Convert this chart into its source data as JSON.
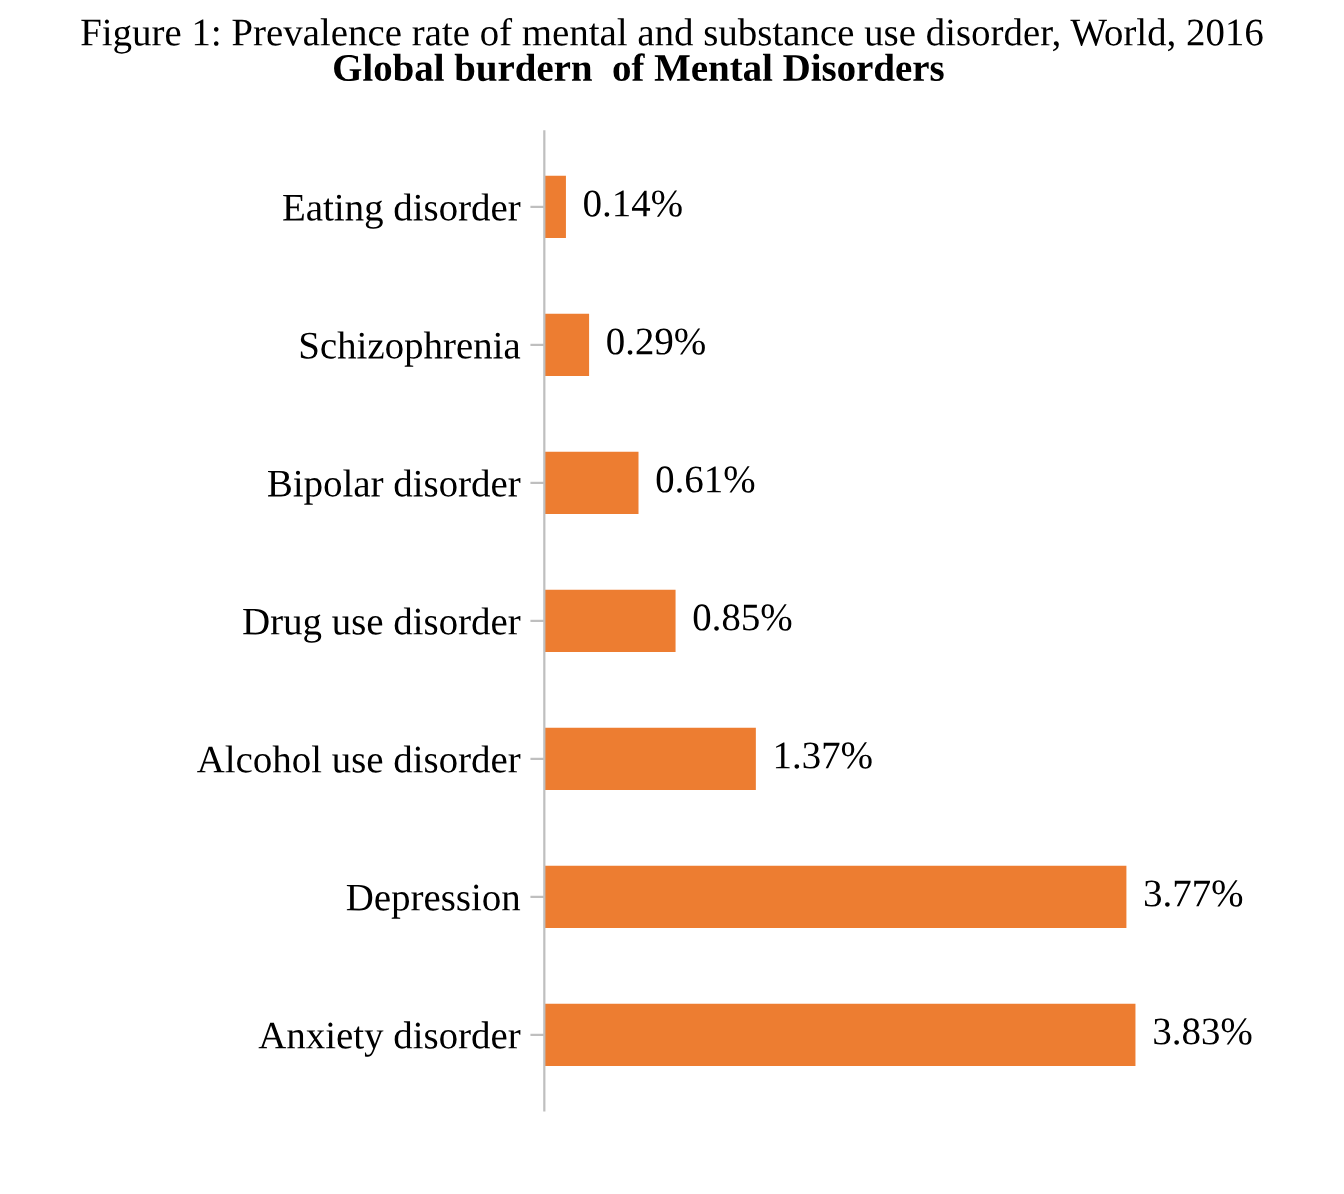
{
  "chart_data": {
    "type": "bar",
    "orientation": "horizontal",
    "title": "Figure 1: Prevalence rate of mental and substance use disorder, World, 2016",
    "subtitle": "Global burdern  of Mental Disorders",
    "categories": [
      "Eating disorder",
      "Schizophrenia",
      "Bipolar disorder",
      "Drug use disorder",
      "Alcohol use disorder",
      "Depression",
      "Anxiety disorder"
    ],
    "values": [
      0.14,
      0.29,
      0.61,
      0.85,
      1.37,
      3.77,
      3.83
    ],
    "value_labels": [
      "0.14%",
      "0.29%",
      "0.61%",
      "0.85%",
      "1.37%",
      "3.77%",
      "3.83%"
    ],
    "color": "#ed7d31",
    "relative": false,
    "grid": false,
    "legend": false
  }
}
